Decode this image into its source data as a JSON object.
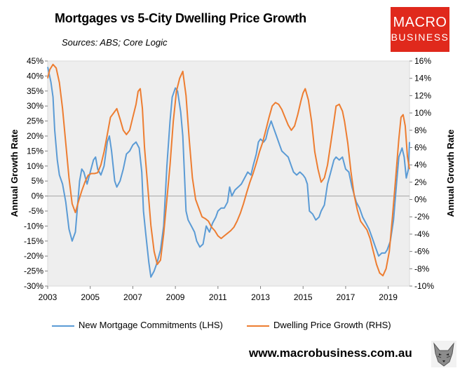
{
  "chart_data": {
    "type": "line",
    "title": "Mortgages vs 5-City Dwelling Price Growth",
    "subtitle": "Sources: ABS; Core Logic",
    "ylabel_left": "Annual Growth Rate",
    "ylabel_right": "Annual Growth Rate",
    "ylim_left": [
      -30,
      45
    ],
    "ylim_right": [
      -10,
      16
    ],
    "xlim": [
      2003,
      2020
    ],
    "x_ticks": [
      2003,
      2005,
      2007,
      2009,
      2011,
      2013,
      2015,
      2017,
      2019
    ],
    "x_tick_labels": [
      "2003",
      "2005",
      "2007",
      "2009",
      "2011",
      "2013",
      "2015",
      "2017",
      "2019"
    ],
    "left_ticks": [
      45,
      40,
      35,
      30,
      25,
      20,
      15,
      10,
      5,
      0,
      -5,
      -10,
      -15,
      -20,
      -25,
      -30
    ],
    "left_tick_labels": [
      "45%",
      "40%",
      "35%",
      "30%",
      "25%",
      "20%",
      "15%",
      "10%",
      "5%",
      "0%",
      "-5%",
      "-10%",
      "-15%",
      "-20%",
      "-25%",
      "-30%"
    ],
    "right_ticks": [
      16,
      14,
      12,
      10,
      8,
      6,
      4,
      2,
      0,
      -2,
      -4,
      -6,
      -8,
      -10
    ],
    "right_tick_labels": [
      "16%",
      "14%",
      "12%",
      "10%",
      "8%",
      "6%",
      "4%",
      "2%",
      "0%",
      "-2%",
      "-4%",
      "-6%",
      "-8%",
      "-10%"
    ],
    "series": [
      {
        "name": "New Mortgage Commitments (LHS)",
        "axis": "left",
        "color": "#5b9bd5",
        "points": [
          [
            2003.0,
            43
          ],
          [
            2003.15,
            38
          ],
          [
            2003.25,
            33
          ],
          [
            2003.33,
            22
          ],
          [
            2003.45,
            12
          ],
          [
            2003.55,
            7
          ],
          [
            2003.7,
            4
          ],
          [
            2003.85,
            -2
          ],
          [
            2004.0,
            -11
          ],
          [
            2004.15,
            -15
          ],
          [
            2004.3,
            -12
          ],
          [
            2004.5,
            5
          ],
          [
            2004.6,
            9
          ],
          [
            2004.7,
            8
          ],
          [
            2004.85,
            4
          ],
          [
            2005.0,
            8
          ],
          [
            2005.15,
            12
          ],
          [
            2005.25,
            13
          ],
          [
            2005.35,
            9
          ],
          [
            2005.5,
            7
          ],
          [
            2005.65,
            10
          ],
          [
            2005.8,
            18
          ],
          [
            2005.9,
            20
          ],
          [
            2006.0,
            15
          ],
          [
            2006.15,
            5
          ],
          [
            2006.25,
            3
          ],
          [
            2006.4,
            5
          ],
          [
            2006.55,
            9
          ],
          [
            2006.7,
            14
          ],
          [
            2006.85,
            15
          ],
          [
            2007.0,
            17
          ],
          [
            2007.15,
            18
          ],
          [
            2007.3,
            16
          ],
          [
            2007.42,
            8
          ],
          [
            2007.5,
            -5
          ],
          [
            2007.6,
            -12
          ],
          [
            2007.75,
            -22
          ],
          [
            2007.85,
            -27
          ],
          [
            2008.0,
            -25
          ],
          [
            2008.15,
            -22
          ],
          [
            2008.3,
            -18
          ],
          [
            2008.45,
            -10
          ],
          [
            2008.6,
            10
          ],
          [
            2008.75,
            25
          ],
          [
            2008.85,
            33
          ],
          [
            2009.0,
            36
          ],
          [
            2009.1,
            35
          ],
          [
            2009.25,
            28
          ],
          [
            2009.35,
            20
          ],
          [
            2009.5,
            -5
          ],
          [
            2009.6,
            -8
          ],
          [
            2009.75,
            -10
          ],
          [
            2009.9,
            -12
          ],
          [
            2010.0,
            -15
          ],
          [
            2010.15,
            -17
          ],
          [
            2010.3,
            -16
          ],
          [
            2010.45,
            -10
          ],
          [
            2010.6,
            -12
          ],
          [
            2010.75,
            -9
          ],
          [
            2010.9,
            -7
          ],
          [
            2011.0,
            -5
          ],
          [
            2011.15,
            -4
          ],
          [
            2011.3,
            -4
          ],
          [
            2011.45,
            -2
          ],
          [
            2011.55,
            3
          ],
          [
            2011.65,
            0
          ],
          [
            2011.8,
            2
          ],
          [
            2011.95,
            3
          ],
          [
            2012.1,
            4
          ],
          [
            2012.25,
            6
          ],
          [
            2012.4,
            8
          ],
          [
            2012.55,
            7
          ],
          [
            2012.65,
            10
          ],
          [
            2012.8,
            14
          ],
          [
            2012.9,
            18
          ],
          [
            2013.0,
            19
          ],
          [
            2013.15,
            18
          ],
          [
            2013.25,
            19
          ],
          [
            2013.35,
            22
          ],
          [
            2013.5,
            25
          ],
          [
            2013.6,
            23
          ],
          [
            2013.75,
            20
          ],
          [
            2013.9,
            17
          ],
          [
            2014.0,
            15
          ],
          [
            2014.15,
            14
          ],
          [
            2014.3,
            13
          ],
          [
            2014.45,
            10
          ],
          [
            2014.55,
            8
          ],
          [
            2014.7,
            7
          ],
          [
            2014.85,
            8
          ],
          [
            2015.0,
            7
          ],
          [
            2015.1,
            6
          ],
          [
            2015.2,
            4
          ],
          [
            2015.3,
            -5
          ],
          [
            2015.45,
            -6
          ],
          [
            2015.6,
            -8
          ],
          [
            2015.75,
            -7
          ],
          [
            2015.85,
            -5
          ],
          [
            2016.0,
            -3
          ],
          [
            2016.15,
            4
          ],
          [
            2016.3,
            8
          ],
          [
            2016.45,
            12
          ],
          [
            2016.55,
            13
          ],
          [
            2016.7,
            12
          ],
          [
            2016.85,
            13
          ],
          [
            2017.0,
            9
          ],
          [
            2017.15,
            8
          ],
          [
            2017.3,
            3
          ],
          [
            2017.5,
            -2
          ],
          [
            2017.65,
            -4
          ],
          [
            2017.8,
            -7
          ],
          [
            2017.95,
            -9
          ],
          [
            2018.1,
            -11
          ],
          [
            2018.25,
            -14
          ],
          [
            2018.4,
            -17
          ],
          [
            2018.55,
            -20
          ],
          [
            2018.7,
            -19
          ],
          [
            2018.85,
            -19
          ],
          [
            2018.95,
            -18
          ],
          [
            2019.1,
            -15
          ],
          [
            2019.25,
            -8
          ],
          [
            2019.4,
            5
          ],
          [
            2019.5,
            13
          ],
          [
            2019.65,
            16
          ],
          [
            2019.75,
            13
          ],
          [
            2019.85,
            6
          ],
          [
            2019.95,
            9
          ],
          [
            2020.0,
            18
          ]
        ]
      },
      {
        "name": "Dwelling Price Growth (RHS)",
        "axis": "right",
        "color": "#ed7d31",
        "points": [
          [
            2003.0,
            14.0
          ],
          [
            2003.1,
            15.0
          ],
          [
            2003.25,
            15.6
          ],
          [
            2003.4,
            15.2
          ],
          [
            2003.55,
            13.5
          ],
          [
            2003.7,
            10.5
          ],
          [
            2003.85,
            6.5
          ],
          [
            2004.0,
            2.5
          ],
          [
            2004.15,
            -0.5
          ],
          [
            2004.3,
            -1.5
          ],
          [
            2004.45,
            -0.2
          ],
          [
            2004.6,
            1.0
          ],
          [
            2004.75,
            2.0
          ],
          [
            2004.9,
            2.8
          ],
          [
            2005.05,
            3.0
          ],
          [
            2005.2,
            3.0
          ],
          [
            2005.35,
            3.1
          ],
          [
            2005.5,
            4.0
          ],
          [
            2005.65,
            5.5
          ],
          [
            2005.8,
            7.5
          ],
          [
            2005.95,
            9.5
          ],
          [
            2006.1,
            10.0
          ],
          [
            2006.25,
            10.5
          ],
          [
            2006.4,
            9.3
          ],
          [
            2006.55,
            8.0
          ],
          [
            2006.7,
            7.5
          ],
          [
            2006.85,
            8.0
          ],
          [
            2007.0,
            9.5
          ],
          [
            2007.15,
            11.0
          ],
          [
            2007.25,
            12.5
          ],
          [
            2007.35,
            12.8
          ],
          [
            2007.45,
            10.5
          ],
          [
            2007.55,
            6.0
          ],
          [
            2007.7,
            1.5
          ],
          [
            2007.85,
            -3.0
          ],
          [
            2008.0,
            -6.0
          ],
          [
            2008.15,
            -7.5
          ],
          [
            2008.3,
            -7.0
          ],
          [
            2008.45,
            -4.0
          ],
          [
            2008.6,
            0.0
          ],
          [
            2008.75,
            4.0
          ],
          [
            2008.9,
            9.0
          ],
          [
            2009.05,
            12.5
          ],
          [
            2009.2,
            14.0
          ],
          [
            2009.35,
            14.8
          ],
          [
            2009.5,
            12.0
          ],
          [
            2009.65,
            7.0
          ],
          [
            2009.8,
            2.5
          ],
          [
            2009.95,
            0.0
          ],
          [
            2010.1,
            -1.0
          ],
          [
            2010.25,
            -2.0
          ],
          [
            2010.4,
            -2.2
          ],
          [
            2010.55,
            -2.5
          ],
          [
            2010.7,
            -3.2
          ],
          [
            2010.85,
            -3.6
          ],
          [
            2011.0,
            -4.2
          ],
          [
            2011.15,
            -4.5
          ],
          [
            2011.3,
            -4.2
          ],
          [
            2011.45,
            -3.9
          ],
          [
            2011.6,
            -3.6
          ],
          [
            2011.75,
            -3.2
          ],
          [
            2011.9,
            -2.5
          ],
          [
            2012.05,
            -1.6
          ],
          [
            2012.2,
            -0.5
          ],
          [
            2012.35,
            0.8
          ],
          [
            2012.5,
            2.0
          ],
          [
            2012.65,
            3.0
          ],
          [
            2012.8,
            4.2
          ],
          [
            2012.95,
            5.5
          ],
          [
            2013.1,
            6.6
          ],
          [
            2013.25,
            8.0
          ],
          [
            2013.4,
            9.5
          ],
          [
            2013.55,
            10.8
          ],
          [
            2013.7,
            11.2
          ],
          [
            2013.85,
            11.0
          ],
          [
            2014.0,
            10.4
          ],
          [
            2014.15,
            9.5
          ],
          [
            2014.3,
            8.6
          ],
          [
            2014.45,
            8.0
          ],
          [
            2014.6,
            8.5
          ],
          [
            2014.75,
            9.8
          ],
          [
            2014.9,
            11.4
          ],
          [
            2015.0,
            12.3
          ],
          [
            2015.1,
            12.8
          ],
          [
            2015.25,
            11.5
          ],
          [
            2015.4,
            9.0
          ],
          [
            2015.55,
            5.5
          ],
          [
            2015.7,
            3.5
          ],
          [
            2015.85,
            2.0
          ],
          [
            2016.0,
            2.5
          ],
          [
            2016.15,
            4.0
          ],
          [
            2016.3,
            6.5
          ],
          [
            2016.45,
            9.0
          ],
          [
            2016.55,
            10.8
          ],
          [
            2016.7,
            11.0
          ],
          [
            2016.85,
            10.2
          ],
          [
            2016.95,
            9.0
          ],
          [
            2017.1,
            6.5
          ],
          [
            2017.25,
            3.2
          ],
          [
            2017.4,
            0.5
          ],
          [
            2017.55,
            -1.2
          ],
          [
            2017.7,
            -2.5
          ],
          [
            2017.85,
            -3.0
          ],
          [
            2018.0,
            -3.5
          ],
          [
            2018.15,
            -4.5
          ],
          [
            2018.3,
            -6.0
          ],
          [
            2018.45,
            -7.5
          ],
          [
            2018.6,
            -8.5
          ],
          [
            2018.75,
            -8.8
          ],
          [
            2018.9,
            -8.0
          ],
          [
            2019.05,
            -6.0
          ],
          [
            2019.2,
            -2.0
          ],
          [
            2019.35,
            2.5
          ],
          [
            2019.5,
            7.0
          ],
          [
            2019.6,
            9.5
          ],
          [
            2019.7,
            9.8
          ],
          [
            2019.8,
            8.5
          ],
          [
            2019.9,
            5.0
          ],
          [
            2020.0,
            3.5
          ]
        ]
      }
    ],
    "legend_position": "bottom",
    "grid": false
  },
  "branding": {
    "logo_line1": "MACRO",
    "logo_line2": "BUSINESS",
    "logo_color": "#e0291c",
    "website": "www.macrobusiness.com.au"
  }
}
